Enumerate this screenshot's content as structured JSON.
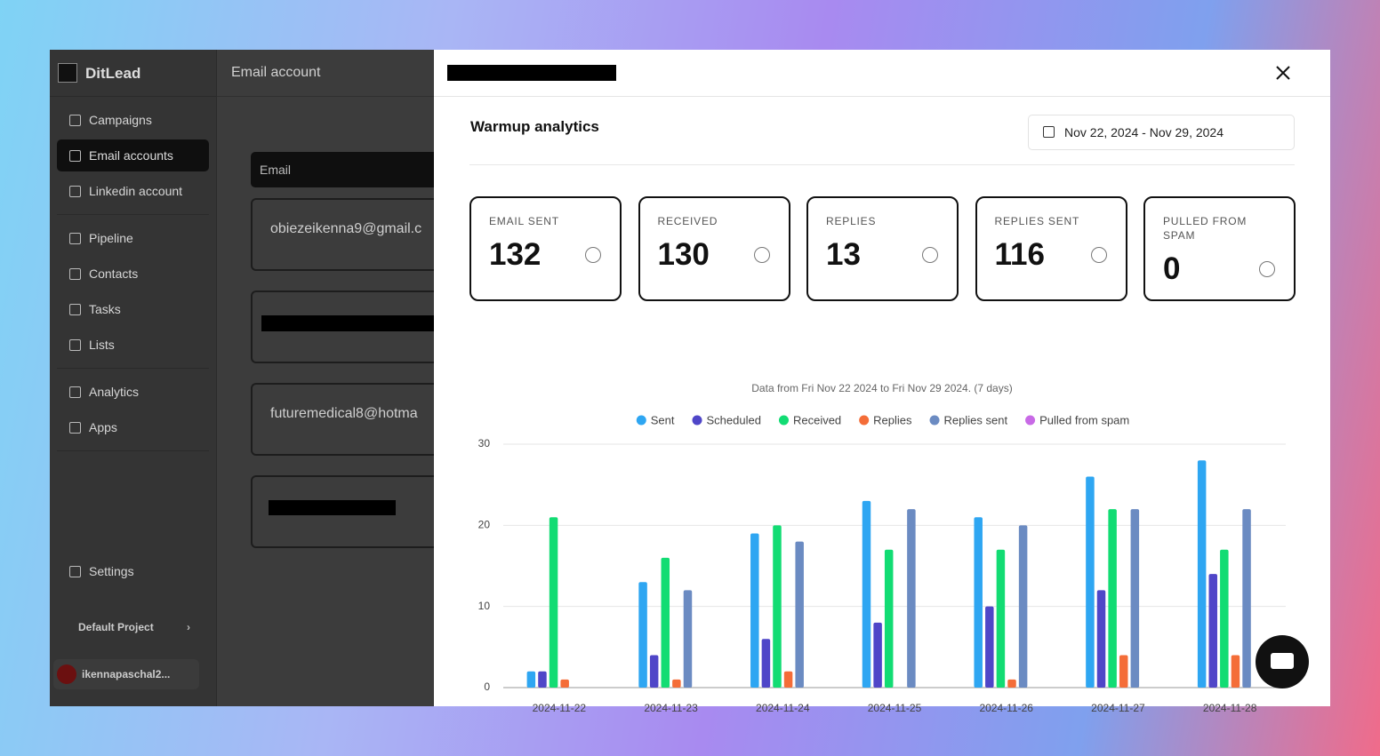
{
  "sidebar": {
    "brand": "DitLead",
    "nav": [
      "Campaigns",
      "Email accounts",
      "Linkedin account",
      "Pipeline",
      "Contacts",
      "Tasks",
      "Lists",
      "Analytics",
      "Apps"
    ],
    "settings": "Settings",
    "project": "Default Project",
    "user": "ikennapaschal2..."
  },
  "main": {
    "title": "Email account",
    "table_header": "Email",
    "rows": [
      "obiezeikenna9@gmail.c",
      "futuremedical8@hotma"
    ]
  },
  "modal": {
    "heading": "Warmup analytics",
    "date_range": "Nov 22, 2024 - Nov 29, 2024",
    "stats": [
      {
        "label": "EMAIL SENT",
        "value": 132
      },
      {
        "label": "RECEIVED",
        "value": 130
      },
      {
        "label": "REPLIES",
        "value": 13
      },
      {
        "label": "REPLIES SENT",
        "value": 116
      },
      {
        "label": "PULLED FROM SPAM",
        "value": 0
      }
    ]
  },
  "chart_data": {
    "type": "bar",
    "title": "Data from Fri Nov 22 2024 to Fri Nov 29 2024. (7 days)",
    "categories": [
      "2024-11-22",
      "2024-11-23",
      "2024-11-24",
      "2024-11-25",
      "2024-11-26",
      "2024-11-27",
      "2024-11-28"
    ],
    "series": [
      {
        "name": "Sent",
        "color": "#2ea6f2",
        "values": [
          2,
          13,
          19,
          23,
          21,
          26,
          28
        ]
      },
      {
        "name": "Scheduled",
        "color": "#4f46c8",
        "values": [
          2,
          4,
          6,
          8,
          10,
          12,
          14
        ]
      },
      {
        "name": "Received",
        "color": "#12dc73",
        "values": [
          21,
          16,
          20,
          17,
          17,
          22,
          17
        ]
      },
      {
        "name": "Replies",
        "color": "#f46d38",
        "values": [
          1,
          1,
          2,
          0,
          1,
          4,
          4
        ]
      },
      {
        "name": "Replies sent",
        "color": "#6b8bc2",
        "values": [
          0,
          12,
          18,
          22,
          20,
          22,
          22
        ]
      },
      {
        "name": "Pulled from spam",
        "color": "#c86ae6",
        "values": [
          0,
          0,
          0,
          0,
          0,
          0,
          0
        ]
      }
    ],
    "ylim": [
      0,
      30
    ],
    "yticks": [
      0,
      10,
      20,
      30
    ],
    "grid": true,
    "legend": "top"
  }
}
